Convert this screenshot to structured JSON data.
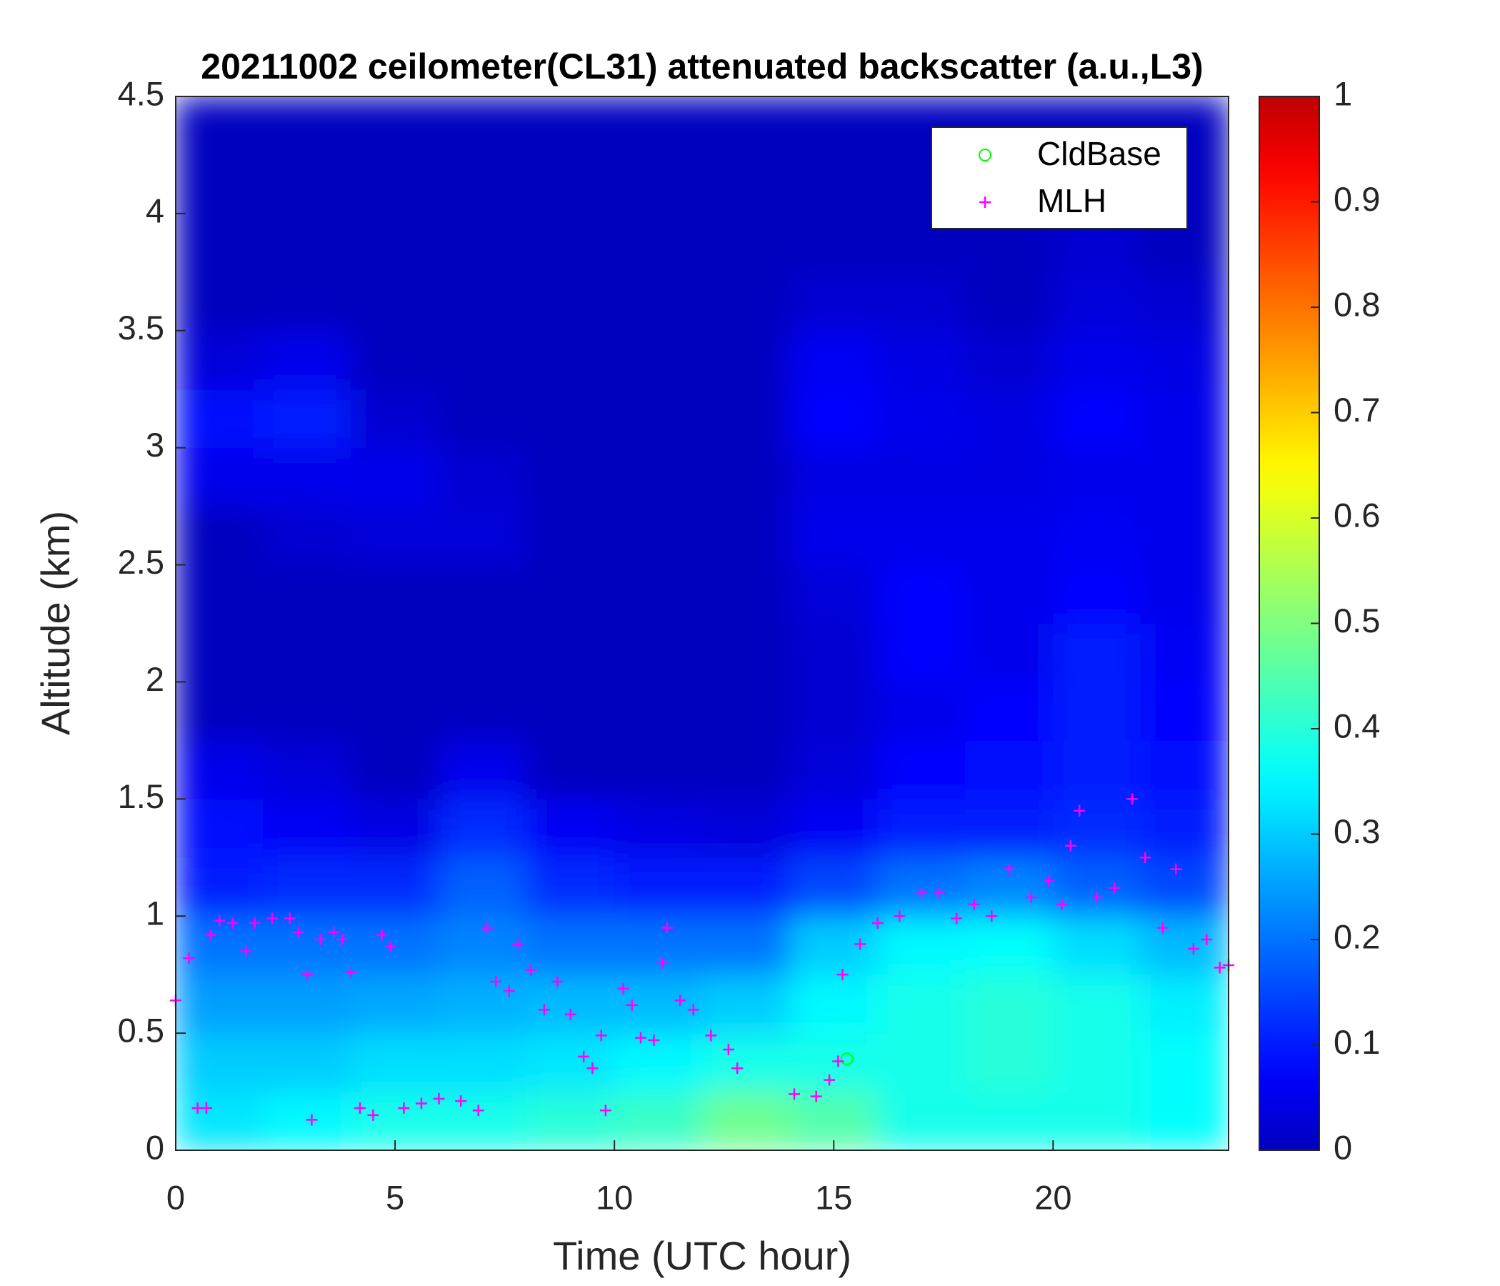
{
  "chart_data": {
    "type": "heatmap",
    "title": "20211002 ceilometer(CL31) attenuated backscatter (a.u.,L3)",
    "xlabel": "Time (UTC hour)",
    "ylabel": "Altitude (km)",
    "xlim": [
      0,
      24
    ],
    "xticks": [
      0,
      5,
      10,
      15,
      20
    ],
    "ylim": [
      0,
      4.5
    ],
    "yticks": [
      0,
      0.5,
      1,
      1.5,
      2,
      2.5,
      3,
      3.5,
      4,
      4.5
    ],
    "colormap": "jet",
    "clim": [
      0,
      1
    ],
    "cticks": [
      0,
      0.1,
      0.2,
      0.3,
      0.4,
      0.5,
      0.6,
      0.7,
      0.8,
      0.9,
      1
    ],
    "x": [
      1,
      3,
      5,
      7,
      9,
      11,
      13,
      15,
      17,
      19,
      21,
      23
    ],
    "y": [
      0.125,
      0.375,
      0.625,
      0.875,
      1.125,
      1.375,
      1.625,
      1.875,
      2.125,
      2.375,
      2.625,
      2.875,
      3.125,
      3.375,
      3.625,
      3.875,
      4.125,
      4.375
    ],
    "z": [
      [
        0.33,
        0.3,
        0.25,
        0.2,
        0.1,
        0.08,
        0.05,
        0,
        0,
        0,
        0,
        0.05,
        0.08,
        0.03,
        0,
        0,
        0,
        0
      ],
      [
        0.35,
        0.3,
        0.25,
        0.2,
        0.12,
        0.06,
        0.03,
        0,
        0,
        0,
        0.02,
        0.05,
        0.1,
        0.05,
        0,
        0,
        0,
        0
      ],
      [
        0.38,
        0.32,
        0.26,
        0.2,
        0.12,
        0.04,
        0,
        0,
        0,
        0,
        0.03,
        0.05,
        0.02,
        0,
        0,
        0,
        0,
        0
      ],
      [
        0.38,
        0.32,
        0.27,
        0.22,
        0.18,
        0.12,
        0.05,
        0,
        0,
        0,
        0.03,
        0.02,
        0,
        0,
        0,
        0,
        0,
        0
      ],
      [
        0.4,
        0.33,
        0.28,
        0.2,
        0.12,
        0.06,
        0,
        0,
        0,
        0,
        0,
        0,
        0,
        0,
        0,
        0,
        0,
        0
      ],
      [
        0.42,
        0.35,
        0.28,
        0.2,
        0.1,
        0.04,
        0,
        0,
        0,
        0,
        0,
        0,
        0,
        0,
        0,
        0,
        0,
        0
      ],
      [
        0.48,
        0.38,
        0.3,
        0.2,
        0.1,
        0.03,
        0,
        0,
        0,
        0,
        0,
        0,
        0,
        0,
        0,
        0,
        0,
        0
      ],
      [
        0.45,
        0.38,
        0.35,
        0.3,
        0.15,
        0.06,
        0.03,
        0.02,
        0.02,
        0.03,
        0.05,
        0.04,
        0.07,
        0.06,
        0.02,
        0,
        0,
        0
      ],
      [
        0.38,
        0.38,
        0.38,
        0.35,
        0.2,
        0.1,
        0.07,
        0.05,
        0.07,
        0.07,
        0.05,
        0.04,
        0.05,
        0.04,
        0.02,
        0,
        0,
        0
      ],
      [
        0.38,
        0.4,
        0.4,
        0.36,
        0.22,
        0.1,
        0.08,
        0.07,
        0.05,
        0.05,
        0.05,
        0.04,
        0.04,
        0.02,
        0,
        0,
        0,
        0
      ],
      [
        0.38,
        0.38,
        0.38,
        0.32,
        0.18,
        0.12,
        0.1,
        0.1,
        0.1,
        0.07,
        0.06,
        0.05,
        0.07,
        0.05,
        0.03,
        0.02,
        0,
        0
      ],
      [
        0.36,
        0.36,
        0.34,
        0.28,
        0.15,
        0.1,
        0.08,
        0.07,
        0.06,
        0.05,
        0.05,
        0.05,
        0.05,
        0.04,
        0.02,
        0,
        0,
        0
      ]
    ],
    "legend": "upper right",
    "series": [
      {
        "name": "CldBase",
        "color": "#00ff00",
        "marker": "o",
        "x": [
          15.3
        ],
        "y": [
          0.39
        ]
      },
      {
        "name": "MLH",
        "color": "#ff00ff",
        "marker": "+",
        "x": [
          0,
          0.3,
          0.5,
          0.7,
          0.8,
          1,
          1.3,
          1.6,
          1.8,
          2.2,
          2.6,
          2.8,
          3,
          3.1,
          3.3,
          3.6,
          3.8,
          4,
          4.2,
          4.5,
          4.7,
          4.9,
          5.2,
          5.6,
          6,
          6.5,
          6.9,
          7.1,
          7.3,
          7.6,
          7.8,
          8.1,
          8.4,
          8.7,
          9,
          9.3,
          9.5,
          9.7,
          9.8,
          10.2,
          10.4,
          10.6,
          10.9,
          11.1,
          11.2,
          11.5,
          11.8,
          12.2,
          12.6,
          12.8,
          14.1,
          14.6,
          14.9,
          15.1,
          15.2,
          15.6,
          16,
          16.5,
          17,
          17.4,
          17.8,
          18.2,
          18.6,
          19,
          19.5,
          19.9,
          20.2,
          20.4,
          20.6,
          21,
          21.4,
          21.8,
          22.1,
          22.5,
          22.8,
          23.2,
          23.5,
          23.8,
          24
        ],
        "y": [
          0.64,
          0.82,
          0.18,
          0.18,
          0.92,
          0.98,
          0.97,
          0.85,
          0.97,
          0.99,
          0.99,
          0.93,
          0.75,
          0.13,
          0.9,
          0.93,
          0.9,
          0.76,
          0.18,
          0.15,
          0.92,
          0.87,
          0.18,
          0.2,
          0.22,
          0.21,
          0.17,
          0.95,
          0.72,
          0.68,
          0.88,
          0.77,
          0.6,
          0.72,
          0.58,
          0.4,
          0.35,
          0.49,
          0.17,
          0.69,
          0.62,
          0.48,
          0.47,
          0.8,
          0.95,
          0.64,
          0.6,
          0.49,
          0.43,
          0.35,
          0.24,
          0.23,
          0.3,
          0.38,
          0.75,
          0.88,
          0.97,
          1.0,
          1.1,
          1.1,
          0.99,
          1.05,
          1.0,
          1.2,
          1.08,
          1.15,
          1.05,
          1.3,
          1.45,
          1.08,
          1.12,
          1.5,
          1.25,
          0.95,
          1.2,
          0.86,
          0.9,
          0.78,
          0.79
        ]
      }
    ]
  }
}
